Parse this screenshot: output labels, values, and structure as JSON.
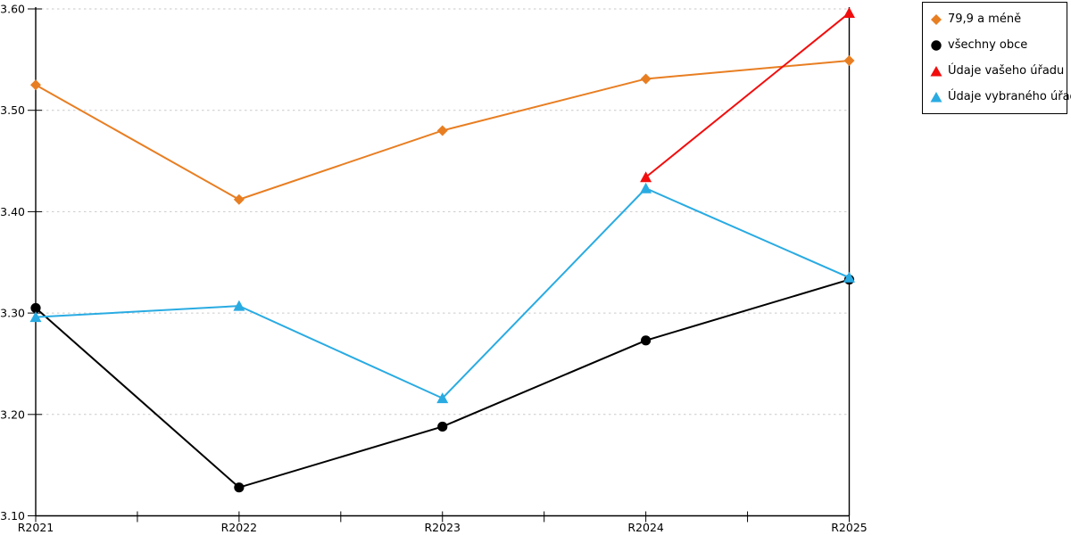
{
  "chart_data": {
    "type": "line",
    "title": "",
    "xlabel": "",
    "ylabel": "",
    "categories": [
      "R2021",
      "R2022",
      "R2023",
      "R2024",
      "R2025"
    ],
    "y_ticks": [
      "3.60",
      "3.50",
      "3.40",
      "3.30",
      "3.20",
      "3.10"
    ],
    "ylim": [
      3.1,
      3.6
    ],
    "grid": "horizontal dashed gridlines every 0.10, solid bottom axis, solid right border",
    "grid_color": "#c9c9c9",
    "axis_color": "#000000",
    "legend_position": "top-right outside plot",
    "series": [
      {
        "name": "79,9 a méně",
        "color": "#e87e22",
        "marker": "diamond",
        "values": [
          3.525,
          3.412,
          3.48,
          3.531,
          3.549
        ]
      },
      {
        "name": "všechny obce",
        "color": "#000000",
        "marker": "circle",
        "values": [
          3.305,
          3.128,
          3.188,
          3.273,
          3.333
        ]
      },
      {
        "name": "Údaje vašeho úřadu",
        "color": "#f20d0d",
        "marker": "triangle",
        "values": [
          null,
          null,
          null,
          3.434,
          3.596
        ]
      },
      {
        "name": "Údaje vybraného úřadu",
        "color": "#29abe2",
        "marker": "triangle",
        "values": [
          3.296,
          3.307,
          3.216,
          3.423,
          3.335
        ]
      }
    ]
  }
}
